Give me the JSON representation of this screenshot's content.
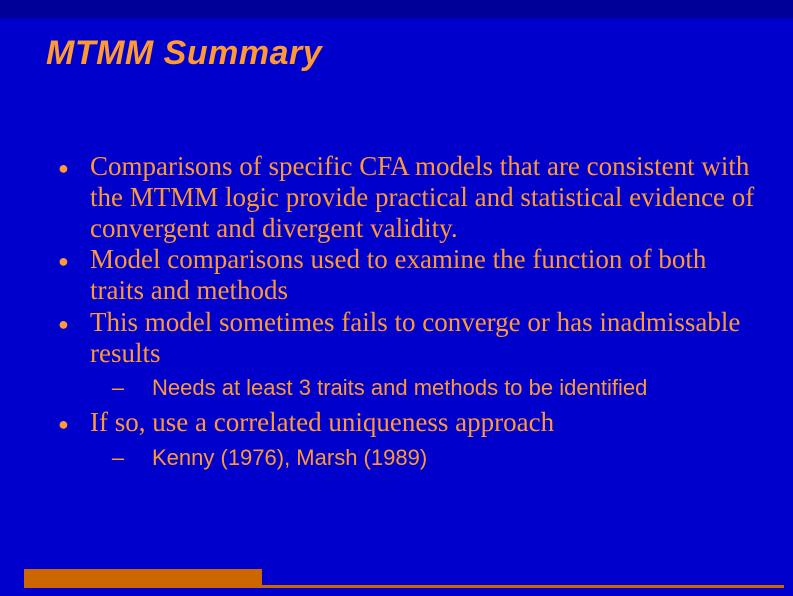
{
  "colors": {
    "background": "#0000cc",
    "title_bar": "#000099",
    "text": "#ff9933",
    "accent": "#cc6600"
  },
  "typography": {
    "title_family": "Arial",
    "title_size_pt": 26,
    "title_weight": "bold",
    "title_style": "italic",
    "body_family": "Times New Roman",
    "body_size_pt": 20,
    "sub_family": "Arial",
    "sub_size_pt": 16
  },
  "title": "MTMM Summary",
  "bullets": [
    {
      "text": "Comparisons of specific CFA models that are consistent with the MTMM logic provide practical and statistical evidence of convergent and divergent validity.",
      "sub": []
    },
    {
      "text": "Model comparisons used to examine the function of both traits and methods",
      "sub": []
    },
    {
      "text": "This model sometimes fails to converge or has inadmissable results",
      "sub": [
        "Needs at least 3 traits and methods to be identified"
      ]
    },
    {
      "text": "If so, use a correlated uniqueness approach",
      "sub": [
        "Kenny (1976), Marsh (1989)"
      ]
    }
  ]
}
